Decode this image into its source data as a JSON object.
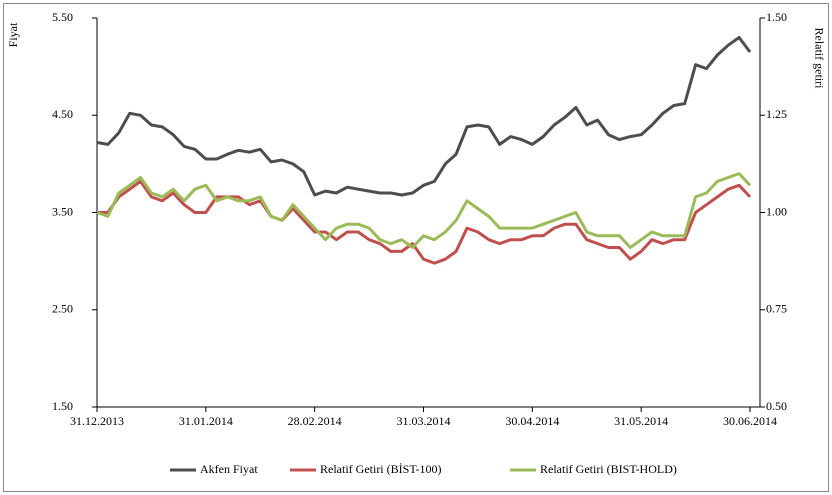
{
  "chart_data": {
    "type": "line",
    "ylabel": "Fiyat",
    "y2label": "Relatif getiri",
    "categories": [
      "31.12.2013",
      null,
      null,
      null,
      null,
      null,
      null,
      null,
      null,
      null,
      "31.01.2014",
      null,
      null,
      null,
      null,
      null,
      null,
      null,
      null,
      null,
      "28.02.2014",
      null,
      null,
      null,
      null,
      null,
      null,
      null,
      null,
      null,
      "31.03.2014",
      null,
      null,
      null,
      null,
      null,
      null,
      null,
      null,
      null,
      "30.04.2014",
      null,
      null,
      null,
      null,
      null,
      null,
      null,
      null,
      null,
      "31.05.2014",
      null,
      null,
      null,
      null,
      null,
      null,
      null,
      null,
      null,
      "30.06.2014"
    ],
    "ylim": [
      1.5,
      5.5
    ],
    "yticks": [
      {
        "value": 1.5,
        "label": "1.50"
      },
      {
        "value": 2.5,
        "label": "2.50"
      },
      {
        "value": 3.5,
        "label": "3.50"
      },
      {
        "value": 4.5,
        "label": "4.50"
      },
      {
        "value": 5.5,
        "label": "5.50"
      }
    ],
    "y2lim": [
      0.5,
      1.5
    ],
    "y2ticks": [
      {
        "value": 0.5,
        "label": "0.50"
      },
      {
        "value": 0.75,
        "label": "0.75"
      },
      {
        "value": 1.0,
        "label": "1.00"
      },
      {
        "value": 1.25,
        "label": "1.25"
      },
      {
        "value": 1.5,
        "label": "1.50"
      }
    ],
    "legend": "bottom",
    "series": [
      {
        "name": "Akfen Fiyat",
        "color": "#4d4d4d",
        "values": [
          4.22,
          4.2,
          4.32,
          4.52,
          4.5,
          4.4,
          4.38,
          4.3,
          4.18,
          4.15,
          4.05,
          4.05,
          4.1,
          4.14,
          4.12,
          4.15,
          4.02,
          4.04,
          4.0,
          3.92,
          3.68,
          3.72,
          3.7,
          3.76,
          3.74,
          3.72,
          3.7,
          3.7,
          3.68,
          3.7,
          3.78,
          3.82,
          4.0,
          4.1,
          4.38,
          4.4,
          4.38,
          4.2,
          4.28,
          4.25,
          4.2,
          4.28,
          4.4,
          4.48,
          4.58,
          4.4,
          4.45,
          4.3,
          4.25,
          4.28,
          4.3,
          4.4,
          4.52,
          4.6,
          4.62,
          5.02,
          4.98,
          5.12,
          5.22,
          5.3,
          5.15
        ]
      },
      {
        "name": "Relatif Getiri (BİST-100)",
        "color": "#c0504d",
        "axis": "y2",
        "values": [
          1.0,
          1.0,
          1.04,
          1.06,
          1.08,
          1.04,
          1.03,
          1.05,
          1.02,
          1.0,
          1.0,
          1.04,
          1.04,
          1.04,
          1.02,
          1.03,
          0.99,
          0.98,
          1.01,
          0.98,
          0.95,
          0.95,
          0.93,
          0.95,
          0.95,
          0.93,
          0.92,
          0.9,
          0.9,
          0.92,
          0.88,
          0.87,
          0.88,
          0.9,
          0.96,
          0.95,
          0.93,
          0.92,
          0.93,
          0.93,
          0.94,
          0.94,
          0.96,
          0.97,
          0.97,
          0.93,
          0.92,
          0.91,
          0.91,
          0.88,
          0.9,
          0.93,
          0.92,
          0.93,
          0.93,
          1.0,
          1.02,
          1.04,
          1.06,
          1.07,
          1.04
        ]
      },
      {
        "name": "Relatif Getiri (BIST-HOLD)",
        "color": "#9bbb59",
        "axis": "y2",
        "values": [
          1.0,
          0.99,
          1.05,
          1.07,
          1.09,
          1.05,
          1.04,
          1.06,
          1.03,
          1.06,
          1.07,
          1.03,
          1.04,
          1.03,
          1.03,
          1.04,
          0.99,
          0.98,
          1.02,
          0.99,
          0.96,
          0.93,
          0.96,
          0.97,
          0.97,
          0.96,
          0.93,
          0.92,
          0.93,
          0.91,
          0.94,
          0.93,
          0.95,
          0.98,
          1.03,
          1.01,
          0.99,
          0.96,
          0.96,
          0.96,
          0.96,
          0.97,
          0.98,
          0.99,
          1.0,
          0.95,
          0.94,
          0.94,
          0.94,
          0.91,
          0.93,
          0.95,
          0.94,
          0.94,
          0.94,
          1.04,
          1.05,
          1.08,
          1.09,
          1.1,
          1.07
        ]
      }
    ]
  }
}
